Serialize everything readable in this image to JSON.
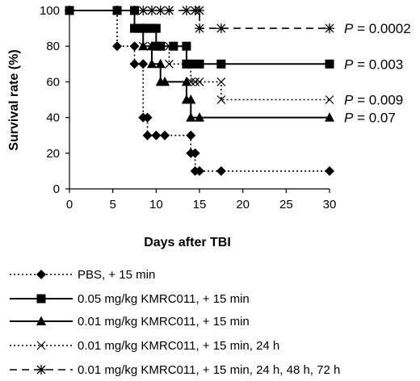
{
  "chart_data": {
    "type": "line",
    "step": true,
    "title": "",
    "xlabel": "Days after TBI",
    "ylabel": "Survival rate (%)",
    "xlim": [
      0,
      30
    ],
    "ylim": [
      0,
      100
    ],
    "xticks": [
      "0",
      "5",
      "10",
      "15",
      "20",
      "25",
      "30"
    ],
    "yticks": [
      "0",
      "20",
      "40",
      "60",
      "80",
      "100"
    ],
    "grid": false,
    "legend_position": "bottom",
    "series": [
      {
        "name": "PBS, + 15 min",
        "line": "dotted",
        "marker": "diamond",
        "x": [
          0,
          5.5,
          7.5,
          8.5,
          9,
          10,
          11,
          14,
          14.5,
          15,
          17.5,
          30
        ],
        "y": [
          100,
          80,
          70,
          40,
          30,
          30,
          30,
          20,
          10,
          10,
          10,
          10
        ],
        "p_value": ""
      },
      {
        "name": "0.05 mg/kg KMRC011, + 15 min",
        "line": "solid",
        "marker": "square",
        "x": [
          0,
          5.5,
          7.5,
          8,
          8.5,
          9,
          9.5,
          10,
          10.5,
          12,
          13.5,
          14,
          15,
          17.5,
          30
        ],
        "y": [
          100,
          100,
          90,
          90,
          90,
          90,
          90,
          80,
          80,
          80,
          70,
          70,
          70,
          70,
          70
        ],
        "p_value": "0.003"
      },
      {
        "name": "0.01 mg/kg KMRC011, + 15 min",
        "line": "solid",
        "marker": "triangle",
        "x": [
          0,
          5.5,
          7.5,
          8.5,
          9.5,
          10.5,
          11,
          13.5,
          14,
          15,
          30
        ],
        "y": [
          100,
          100,
          90,
          80,
          70,
          60,
          60,
          50,
          40,
          40,
          40
        ],
        "p_value": "0.07"
      },
      {
        "name": "0.01 mg/kg KMRC011, + 15 min, 24 h",
        "line": "dotted",
        "marker": "x",
        "x": [
          0,
          5.5,
          7.5,
          8.5,
          9.5,
          11.5,
          14,
          14.5,
          15,
          17.5,
          30
        ],
        "y": [
          100,
          100,
          90,
          80,
          80,
          70,
          60,
          60,
          60,
          50,
          50
        ],
        "p_value": "0.009"
      },
      {
        "name": "0.01 mg/kg KMRC011, + 15 min, 24 h, 48 h, 72 h",
        "line": "dashed",
        "marker": "asterisk",
        "x": [
          0,
          5.5,
          7.5,
          8.5,
          9.5,
          10.5,
          11.5,
          13.5,
          14.5,
          15,
          17.5,
          30
        ],
        "y": [
          100,
          100,
          100,
          100,
          100,
          100,
          100,
          100,
          100,
          90,
          90,
          90
        ],
        "p_value": "0.0002"
      }
    ]
  },
  "pvalue_prefix": "P = "
}
